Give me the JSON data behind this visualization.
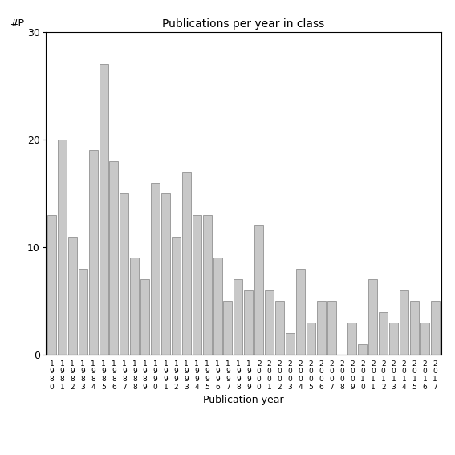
{
  "years": [
    "1980",
    "1981",
    "1982",
    "1983",
    "1984",
    "1985",
    "1986",
    "1987",
    "1988",
    "1989",
    "1990",
    "1991",
    "1992",
    "1993",
    "1994",
    "1995",
    "1996",
    "1997",
    "1998",
    "1999",
    "2000",
    "2001",
    "2002",
    "2003",
    "2004",
    "2005",
    "2006",
    "2007",
    "2008",
    "2009",
    "2010",
    "2011",
    "2012",
    "2013",
    "2014",
    "2015",
    "2016",
    "2017"
  ],
  "values": [
    13,
    20,
    11,
    8,
    19,
    27,
    18,
    15,
    9,
    7,
    16,
    15,
    11,
    17,
    13,
    13,
    9,
    5,
    7,
    6,
    12,
    6,
    5,
    2,
    8,
    3,
    5,
    5,
    0,
    3,
    1,
    7,
    4,
    3,
    6,
    5,
    3,
    5
  ],
  "title": "Publications per year in class",
  "xlabel": "Publication year",
  "ylabel": "#P",
  "ylim": [
    0,
    30
  ],
  "yticks": [
    0,
    10,
    20,
    30
  ],
  "bar_color": "#c8c8c8",
  "bar_edge_color": "#808080",
  "background_color": "#ffffff"
}
